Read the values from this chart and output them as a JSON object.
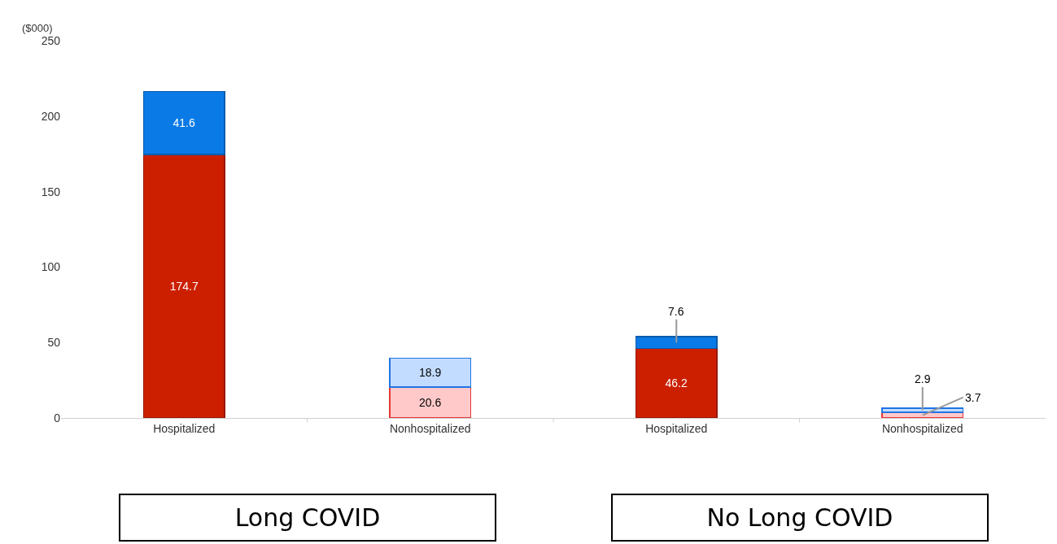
{
  "chart_data": {
    "type": "bar",
    "stacked": true,
    "ylabel": "($000)",
    "categories": [
      "Hospitalized",
      "Nonhospitalized",
      "Hospitalized",
      "Nonhospitalized"
    ],
    "series": [
      {
        "colors": [
          "#cc1f00",
          "#ffc9c9",
          "#cc1f00",
          "#ffc9c9"
        ],
        "values": [
          174.7,
          20.6,
          46.2,
          3.7
        ]
      },
      {
        "colors": [
          "#0a7ae6",
          "#c2dcff",
          "#0a7ae6",
          "#c2dcff"
        ],
        "values": [
          41.6,
          18.9,
          7.6,
          2.9
        ]
      }
    ],
    "ylim": [
      0,
      250
    ],
    "yticks": [
      0,
      50,
      100,
      150,
      200,
      250
    ],
    "grid": false,
    "legend": false,
    "data_labels": true,
    "annotations": [
      "Long COVID",
      "No Long COVID"
    ]
  }
}
